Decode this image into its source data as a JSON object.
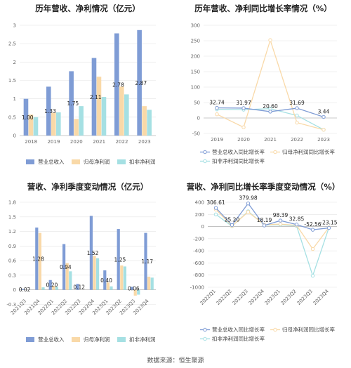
{
  "colors": {
    "s1": "#7f9cd5",
    "s2": "#f9d9a8",
    "s3": "#a5e0e3",
    "axis": "#bbbbbb",
    "grid": "#e4e4e4"
  },
  "source": "数据来源：恒生聚源",
  "chart_data": [
    {
      "type": "bar",
      "title": "历年营收、净利情况（亿元）",
      "categories": [
        "2018",
        "2019",
        "2020",
        "2021",
        "2022",
        "2023"
      ],
      "ylim": [
        0,
        3
      ],
      "yticks": [
        "0",
        "0.5",
        "1",
        "1.5",
        "2",
        "2.5",
        "3"
      ],
      "series": [
        {
          "name": "营业总收入",
          "values": [
            1.0,
            1.33,
            1.75,
            2.11,
            2.78,
            2.87
          ],
          "labels": [
            "1.00",
            "1.33",
            "1.75",
            "2.11",
            "2.78",
            "2.87"
          ]
        },
        {
          "name": "归母净利润",
          "values": [
            0.57,
            0.62,
            0.45,
            1.6,
            1.33,
            0.8
          ]
        },
        {
          "name": "扣非净利润",
          "values": [
            0.5,
            0.63,
            0.8,
            1.05,
            1.12,
            0.7
          ]
        }
      ]
    },
    {
      "type": "line",
      "title": "历年营收、净利同比增长率情况（%）",
      "categories": [
        "2019",
        "2020",
        "2021",
        "2022",
        "2023"
      ],
      "ylim": [
        -50,
        300
      ],
      "yticks": [
        "-50",
        "0",
        "50",
        "100",
        "150",
        "200",
        "250",
        "300"
      ],
      "series": [
        {
          "name": "营业总收入同比增长率",
          "values": [
            32.74,
            31.97,
            20.6,
            31.69,
            3.44
          ],
          "labels": [
            "32.74",
            "31.97",
            "20.60",
            "31.69",
            "3.44"
          ]
        },
        {
          "name": "归母净利润同比增长率",
          "values": [
            12,
            -30,
            252,
            -15,
            -38
          ]
        },
        {
          "name": "扣非净利润同比增长率",
          "values": [
            28,
            27,
            30,
            8,
            -38
          ]
        }
      ]
    },
    {
      "type": "bar",
      "title": "营收、净利季度变动情况（亿元）",
      "categories": [
        "2021Q3",
        "2021Q4",
        "2022Q1",
        "2022Q2",
        "2022Q3",
        "2022Q4",
        "2023Q1",
        "2023Q2",
        "2023Q3",
        "2023Q4"
      ],
      "ylim": [
        -0.15,
        1.8
      ],
      "yticks": [
        "-0.3",
        "0",
        "0.3",
        "0.6",
        "0.9",
        "1.2",
        "1.5",
        "1.8"
      ],
      "tickvals": [
        -0.3,
        0,
        0.3,
        0.6,
        0.9,
        1.2,
        1.5,
        1.8
      ],
      "series": [
        {
          "name": "营业总收入",
          "values": [
            0.02,
            1.28,
            0.2,
            0.94,
            0.12,
            1.52,
            0.4,
            1.25,
            0.06,
            1.17
          ],
          "labels": [
            "0.02",
            "1.28",
            "0.20",
            "0.94",
            "0.12",
            "1.52",
            "0.40",
            "1.25",
            "0.06",
            "1.17"
          ]
        },
        {
          "name": "归母净利润",
          "values": [
            0.0,
            1.17,
            0.08,
            0.55,
            0.0,
            0.7,
            0.15,
            0.5,
            -0.12,
            0.27
          ]
        },
        {
          "name": "扣非净利润",
          "values": [
            0.0,
            0.05,
            0.06,
            0.38,
            0.0,
            0.65,
            0.07,
            0.48,
            -0.1,
            0.25
          ]
        }
      ]
    },
    {
      "type": "line",
      "title": "营收、净利同比增长率季度变动情况（%）",
      "categories": [
        "2022Q1",
        "2022Q2",
        "2022Q3",
        "2022Q4",
        "2023Q1",
        "2023Q2",
        "2023Q3",
        "2023Q4"
      ],
      "ylim": [
        -1000,
        400
      ],
      "yticks": [
        "-1000",
        "-800",
        "-600",
        "-400",
        "-200",
        "0",
        "200",
        "400"
      ],
      "series": [
        {
          "name": "营业总收入同比增长率",
          "values": [
            306.61,
            25.2,
            379.98,
            18.19,
            98.39,
            32.85,
            -52.56,
            -23.15
          ],
          "labels": [
            "306.61",
            "25.20",
            "379.98",
            "18.19",
            "98.39",
            "32.85",
            "-52.56",
            "-23.15"
          ]
        },
        {
          "name": "归母净利润同比增长率",
          "values": [
            280,
            10,
            240,
            30,
            40,
            20,
            -370,
            -15
          ]
        },
        {
          "name": "扣非净利润同比增长率",
          "values": [
            200,
            5,
            250,
            25,
            30,
            10,
            -810,
            -20
          ]
        }
      ]
    }
  ]
}
